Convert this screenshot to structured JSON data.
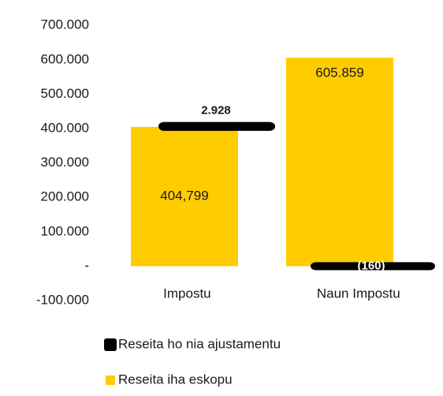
{
  "chart_data": {
    "type": "bar",
    "stacked": true,
    "categories": [
      "Impostu",
      "Naun Impostu"
    ],
    "series": [
      {
        "name": "Reseita iha eskopu",
        "color": "#ffcc00",
        "values": [
          404799,
          605859
        ],
        "value_labels": [
          "404,799",
          "605.859"
        ]
      },
      {
        "name": "Reseita ho nia ajustamentu",
        "color": "#000000",
        "values": [
          2928,
          -160
        ],
        "value_labels": [
          "2.928",
          "(160)"
        ]
      }
    ],
    "ylim": [
      -100000,
      700000
    ],
    "yticks": [
      {
        "value": -100000,
        "label": "-100.000"
      },
      {
        "value": 0,
        "label": "-"
      },
      {
        "value": 100000,
        "label": "100.000"
      },
      {
        "value": 200000,
        "label": "200.000"
      },
      {
        "value": 300000,
        "label": "300.000"
      },
      {
        "value": 400000,
        "label": "400.000"
      },
      {
        "value": 500000,
        "label": "500.000"
      },
      {
        "value": 600000,
        "label": "600.000"
      },
      {
        "value": 700000,
        "label": "700.000"
      }
    ],
    "grid": false
  }
}
